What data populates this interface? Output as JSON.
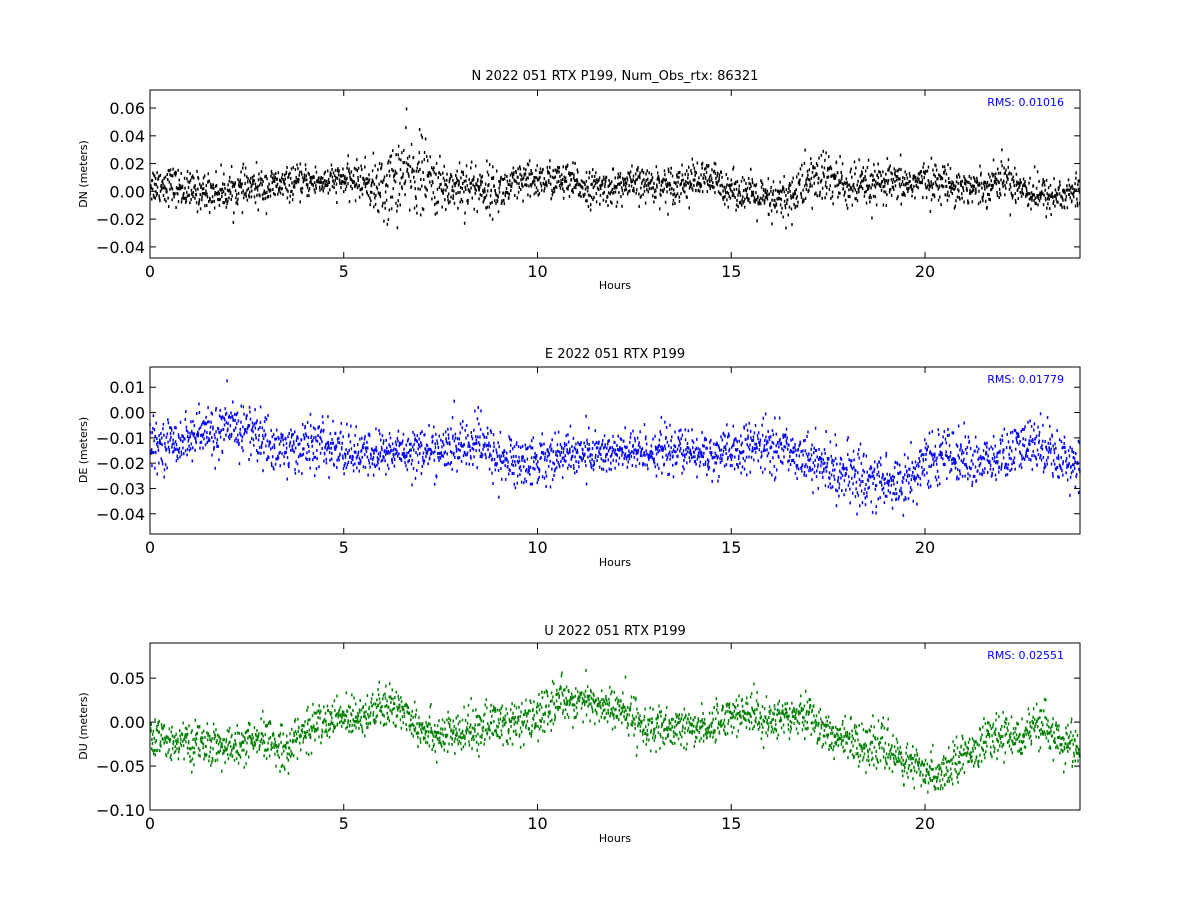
{
  "chart_data": [
    {
      "type": "scatter",
      "title": "N 2022 051 RTX  P199, Num_Obs_rtx: 86321",
      "xlabel": "Hours",
      "ylabel": "DN (meters)",
      "xlim": [
        0,
        24
      ],
      "ylim": [
        -0.048,
        0.073
      ],
      "xticks": [
        0,
        5,
        10,
        15,
        20
      ],
      "xtick_labels": [
        "0",
        "5",
        "10",
        "15",
        "20"
      ],
      "yticks": [
        -0.04,
        -0.02,
        0.0,
        0.02,
        0.04,
        0.06
      ],
      "ytick_labels": [
        "−0.04",
        "−0.02",
        "0.00",
        "0.02",
        "0.04",
        "0.06"
      ],
      "annotation": "RMS:  0.01016",
      "annotation_color": "#0000ff",
      "series_color": "#000000",
      "grid": false,
      "trend": {
        "x": [
          0,
          0.5,
          1,
          1.5,
          2,
          2.5,
          3,
          3.5,
          4,
          4.5,
          5,
          5.5,
          6,
          6.5,
          7,
          7.5,
          8,
          8.5,
          9,
          9.5,
          10,
          10.5,
          11,
          11.5,
          12,
          12.5,
          13,
          13.5,
          14,
          14.5,
          15,
          15.5,
          16,
          16.5,
          17,
          17.5,
          18,
          18.5,
          19,
          19.5,
          20,
          20.5,
          21,
          21.5,
          22,
          22.5,
          23,
          23.5,
          24
        ],
        "center": [
          0.005,
          0.005,
          0.0,
          0.0,
          0.0,
          0.002,
          0.003,
          0.005,
          0.007,
          0.007,
          0.008,
          0.008,
          0.0,
          0.012,
          0.012,
          0.002,
          0.005,
          0.003,
          0.0,
          0.005,
          0.008,
          0.008,
          0.005,
          0.002,
          0.003,
          0.005,
          0.005,
          0.005,
          0.008,
          0.008,
          0.002,
          -0.002,
          -0.008,
          -0.005,
          0.008,
          0.01,
          0.003,
          0.003,
          0.005,
          0.005,
          0.008,
          0.006,
          0.003,
          0.003,
          0.01,
          0.003,
          -0.003,
          -0.003,
          0.0
        ],
        "spread": [
          0.012,
          0.012,
          0.012,
          0.012,
          0.012,
          0.012,
          0.012,
          0.01,
          0.01,
          0.01,
          0.01,
          0.012,
          0.022,
          0.028,
          0.025,
          0.016,
          0.018,
          0.016,
          0.014,
          0.013,
          0.012,
          0.012,
          0.012,
          0.011,
          0.011,
          0.011,
          0.011,
          0.012,
          0.012,
          0.012,
          0.011,
          0.012,
          0.014,
          0.016,
          0.018,
          0.018,
          0.016,
          0.014,
          0.013,
          0.012,
          0.012,
          0.012,
          0.011,
          0.011,
          0.013,
          0.013,
          0.012,
          0.012,
          0.012
        ]
      }
    },
    {
      "type": "scatter",
      "title": "E 2022 051 RTX  P199",
      "xlabel": "Hours",
      "ylabel": "DE (meters)",
      "xlim": [
        0,
        24
      ],
      "ylim": [
        -0.048,
        0.018
      ],
      "xticks": [
        0,
        5,
        10,
        15,
        20
      ],
      "xtick_labels": [
        "0",
        "5",
        "10",
        "15",
        "20"
      ],
      "yticks": [
        -0.04,
        -0.03,
        -0.02,
        -0.01,
        0.0,
        0.01
      ],
      "ytick_labels": [
        "−0.04",
        "−0.03",
        "−0.02",
        "−0.01",
        "0.00",
        "0.01"
      ],
      "annotation": "RMS:  0.01779",
      "annotation_color": "#0000ff",
      "series_color": "#0000ff",
      "grid": false,
      "trend": {
        "x": [
          0,
          0.5,
          1,
          1.5,
          2,
          2.5,
          3,
          3.5,
          4,
          4.5,
          5,
          5.5,
          6,
          6.5,
          7,
          7.5,
          8,
          8.5,
          9,
          9.5,
          10,
          10.5,
          11,
          11.5,
          12,
          12.5,
          13,
          13.5,
          14,
          14.5,
          15,
          15.5,
          16,
          16.5,
          17,
          17.5,
          18,
          18.5,
          19,
          19.5,
          20,
          20.5,
          21,
          21.5,
          22,
          22.5,
          23,
          23.5,
          24
        ],
        "center": [
          -0.013,
          -0.012,
          -0.01,
          -0.008,
          -0.007,
          -0.006,
          -0.012,
          -0.015,
          -0.013,
          -0.013,
          -0.015,
          -0.017,
          -0.016,
          -0.015,
          -0.015,
          -0.015,
          -0.013,
          -0.012,
          -0.018,
          -0.02,
          -0.019,
          -0.017,
          -0.016,
          -0.016,
          -0.016,
          -0.016,
          -0.015,
          -0.015,
          -0.016,
          -0.017,
          -0.016,
          -0.014,
          -0.013,
          -0.015,
          -0.018,
          -0.022,
          -0.025,
          -0.026,
          -0.028,
          -0.027,
          -0.02,
          -0.016,
          -0.018,
          -0.02,
          -0.018,
          -0.014,
          -0.012,
          -0.018,
          -0.02
        ],
        "spread": [
          0.008,
          0.008,
          0.008,
          0.009,
          0.01,
          0.01,
          0.01,
          0.009,
          0.009,
          0.009,
          0.009,
          0.008,
          0.008,
          0.008,
          0.008,
          0.008,
          0.009,
          0.01,
          0.009,
          0.009,
          0.009,
          0.008,
          0.008,
          0.008,
          0.008,
          0.008,
          0.008,
          0.008,
          0.008,
          0.008,
          0.008,
          0.009,
          0.009,
          0.008,
          0.008,
          0.01,
          0.01,
          0.011,
          0.011,
          0.01,
          0.009,
          0.009,
          0.009,
          0.009,
          0.009,
          0.009,
          0.01,
          0.009,
          0.008
        ]
      }
    },
    {
      "type": "scatter",
      "title": "U 2022 051 RTX  P199",
      "xlabel": "Hours",
      "ylabel": "DU (meters)",
      "xlim": [
        0,
        24
      ],
      "ylim": [
        -0.1,
        0.09
      ],
      "xticks": [
        0,
        5,
        10,
        15,
        20
      ],
      "xtick_labels": [
        "0",
        "5",
        "10",
        "15",
        "20"
      ],
      "yticks": [
        -0.1,
        -0.05,
        0.0,
        0.05
      ],
      "ytick_labels": [
        "−0.10",
        "−0.05",
        "0.00",
        "0.05"
      ],
      "annotation": "RMS:  0.02551",
      "annotation_color": "#0000ff",
      "series_color": "#008000",
      "grid": false,
      "trend": {
        "x": [
          0,
          0.5,
          1,
          1.5,
          2,
          2.5,
          3,
          3.5,
          4,
          4.5,
          5,
          5.5,
          6,
          6.5,
          7,
          7.5,
          8,
          8.5,
          9,
          9.5,
          10,
          10.5,
          11,
          11.5,
          12,
          12.5,
          13,
          13.5,
          14,
          14.5,
          15,
          15.5,
          16,
          16.5,
          17,
          17.5,
          18,
          18.5,
          19,
          19.5,
          20,
          20.5,
          21,
          21.5,
          22,
          22.5,
          23,
          23.5,
          24
        ],
        "center": [
          -0.02,
          -0.02,
          -0.025,
          -0.025,
          -0.03,
          -0.025,
          -0.02,
          -0.03,
          -0.01,
          0.0,
          0.005,
          0.01,
          0.015,
          0.015,
          -0.005,
          -0.015,
          -0.015,
          -0.005,
          0.0,
          -0.005,
          0.005,
          0.025,
          0.025,
          0.02,
          0.015,
          0.005,
          -0.01,
          -0.01,
          -0.005,
          -0.005,
          0.01,
          0.01,
          0.0,
          0.01,
          0.01,
          -0.015,
          -0.02,
          -0.025,
          -0.03,
          -0.045,
          -0.06,
          -0.055,
          -0.035,
          -0.025,
          -0.015,
          -0.015,
          -0.005,
          -0.02,
          -0.03
        ],
        "spread": [
          0.02,
          0.02,
          0.02,
          0.02,
          0.02,
          0.02,
          0.022,
          0.022,
          0.022,
          0.02,
          0.02,
          0.02,
          0.022,
          0.022,
          0.022,
          0.022,
          0.022,
          0.022,
          0.024,
          0.024,
          0.022,
          0.02,
          0.02,
          0.02,
          0.02,
          0.022,
          0.022,
          0.02,
          0.02,
          0.02,
          0.02,
          0.02,
          0.02,
          0.022,
          0.022,
          0.02,
          0.02,
          0.022,
          0.024,
          0.022,
          0.02,
          0.02,
          0.02,
          0.02,
          0.02,
          0.02,
          0.022,
          0.022,
          0.022
        ]
      }
    }
  ]
}
